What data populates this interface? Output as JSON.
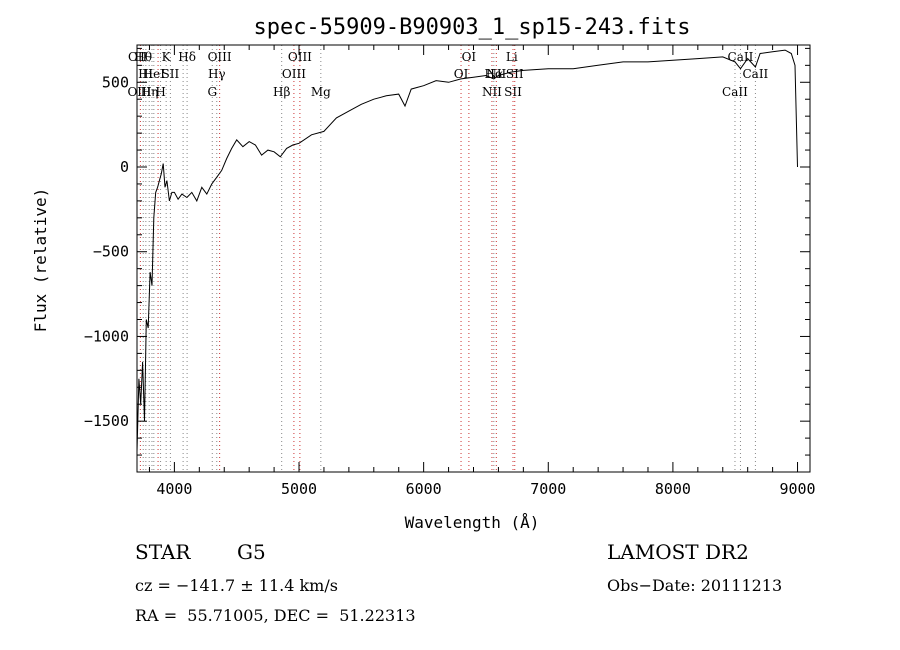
{
  "chart_data": {
    "type": "line",
    "title": "spec-55909-B90903_1_sp15-243.fits",
    "xlabel": "Wavelength (Å)",
    "ylabel": "Flux (relative)",
    "xlim": [
      3700,
      9100
    ],
    "ylim": [
      -1800,
      720
    ],
    "x_ticks": [
      4000,
      5000,
      6000,
      7000,
      8000,
      9000
    ],
    "y_ticks": [
      -1500,
      -1000,
      -500,
      0,
      500
    ],
    "grid": false,
    "series": [
      {
        "x": [
          3700,
          3715,
          3730,
          3745,
          3760,
          3775,
          3790,
          3805,
          3820,
          3835,
          3850,
          3865,
          3880,
          3895,
          3910,
          3925,
          3940,
          3960,
          3980,
          4000,
          4030,
          4060,
          4100,
          4140,
          4180,
          4220,
          4260,
          4300,
          4340,
          4380,
          4420,
          4460,
          4500,
          4550,
          4600,
          4650,
          4700,
          4750,
          4800,
          4850,
          4900,
          4950,
          5000,
          5100,
          5200,
          5300,
          5400,
          5500,
          5600,
          5700,
          5800,
          5850,
          5900,
          5950,
          6000,
          6100,
          6200,
          6300,
          6400,
          6500,
          6563,
          6600,
          6700,
          6800,
          7000,
          7200,
          7400,
          7600,
          7800,
          8000,
          8200,
          8400,
          8498,
          8542,
          8600,
          8662,
          8700,
          8800,
          8900,
          8950,
          8980,
          9000
        ],
        "y": [
          -1680,
          -1250,
          -1400,
          -1150,
          -1500,
          -900,
          -950,
          -620,
          -700,
          -300,
          -150,
          -120,
          -80,
          -40,
          20,
          -120,
          -80,
          -200,
          -150,
          -150,
          -190,
          -160,
          -180,
          -150,
          -200,
          -120,
          -160,
          -100,
          -60,
          -20,
          50,
          110,
          160,
          120,
          150,
          130,
          70,
          100,
          90,
          60,
          110,
          130,
          140,
          190,
          210,
          290,
          330,
          370,
          400,
          420,
          430,
          360,
          460,
          470,
          480,
          510,
          500,
          520,
          530,
          540,
          520,
          540,
          560,
          570,
          580,
          580,
          600,
          620,
          620,
          630,
          640,
          650,
          620,
          580,
          640,
          590,
          670,
          680,
          690,
          670,
          600,
          0
        ]
      }
    ],
    "line_labels": [
      {
        "wave": 3705,
        "text": "OII",
        "row": 1,
        "color": "#000000"
      },
      {
        "wave": 3720,
        "text": "OIII",
        "row": 3,
        "color": "#000000"
      },
      {
        "wave": 3750,
        "text": "Hθ",
        "row": 1,
        "color": "#000000"
      },
      {
        "wave": 3770,
        "text": "Hι",
        "row": 2,
        "color": "#000000"
      },
      {
        "wave": 3800,
        "text": "Hη",
        "row": 3,
        "color": "#000000"
      },
      {
        "wave": 3835,
        "text": "HeI",
        "row": 2,
        "color": "#000000"
      },
      {
        "wave": 3889,
        "text": "H",
        "row": 3,
        "color": "#000000"
      },
      {
        "wave": 3934,
        "text": "K",
        "row": 1,
        "color": "#000000"
      },
      {
        "wave": 3968,
        "text": "SII",
        "row": 2,
        "color": "#000000"
      },
      {
        "wave": 4102,
        "text": "Hδ",
        "row": 1,
        "color": "#000000"
      },
      {
        "wave": 4304,
        "text": "G",
        "row": 3,
        "color": "#000000"
      },
      {
        "wave": 4340,
        "text": "Hγ",
        "row": 2,
        "color": "#000000"
      },
      {
        "wave": 4363,
        "text": "OIII",
        "row": 1,
        "color": "#000000"
      },
      {
        "wave": 4861,
        "text": "Hβ",
        "row": 3,
        "color": "#000000"
      },
      {
        "wave": 4959,
        "text": "OIII",
        "row": 2,
        "color": "#000000"
      },
      {
        "wave": 5007,
        "text": "OIII",
        "row": 1,
        "color": "#000000"
      },
      {
        "wave": 5175,
        "text": "Mg",
        "row": 3,
        "color": "#000000"
      },
      {
        "wave": 6300,
        "text": "OI",
        "row": 2,
        "color": "#000000"
      },
      {
        "wave": 6363,
        "text": "OI",
        "row": 1,
        "color": "#000000"
      },
      {
        "wave": 6548,
        "text": "NII",
        "row": 3,
        "color": "#000000"
      },
      {
        "wave": 6563,
        "text": "Hα",
        "row": 2,
        "color": "#000000"
      },
      {
        "wave": 6583,
        "text": "NII",
        "row": 2,
        "color": "#000000"
      },
      {
        "wave": 6707,
        "text": "Li",
        "row": 1,
        "color": "#000000"
      },
      {
        "wave": 6717,
        "text": "SII",
        "row": 3,
        "color": "#000000"
      },
      {
        "wave": 6731,
        "text": "SII",
        "row": 2,
        "color": "#000000"
      },
      {
        "wave": 8498,
        "text": "CaII",
        "row": 3,
        "color": "#000000"
      },
      {
        "wave": 8542,
        "text": "CaII",
        "row": 1,
        "color": "#000000"
      },
      {
        "wave": 8662,
        "text": "CaII",
        "row": 2,
        "color": "#000000"
      }
    ],
    "marker_lines": [
      {
        "wave": 3727,
        "color": "#cc3333"
      },
      {
        "wave": 3750,
        "color": "#888888"
      },
      {
        "wave": 3771,
        "color": "#888888"
      },
      {
        "wave": 3798,
        "color": "#888888"
      },
      {
        "wave": 3820,
        "color": "#888888"
      },
      {
        "wave": 3835,
        "color": "#888888"
      },
      {
        "wave": 3869,
        "color": "#cc3333"
      },
      {
        "wave": 3889,
        "color": "#888888"
      },
      {
        "wave": 3934,
        "color": "#888888"
      },
      {
        "wave": 3968,
        "color": "#888888"
      },
      {
        "wave": 4070,
        "color": "#888888"
      },
      {
        "wave": 4102,
        "color": "#888888"
      },
      {
        "wave": 4304,
        "color": "#888888"
      },
      {
        "wave": 4340,
        "color": "#888888"
      },
      {
        "wave": 4363,
        "color": "#cc3333"
      },
      {
        "wave": 4861,
        "color": "#888888"
      },
      {
        "wave": 4959,
        "color": "#cc3333"
      },
      {
        "wave": 5007,
        "color": "#cc3333"
      },
      {
        "wave": 5175,
        "color": "#888888"
      },
      {
        "wave": 6300,
        "color": "#cc3333"
      },
      {
        "wave": 6363,
        "color": "#cc3333"
      },
      {
        "wave": 6548,
        "color": "#cc3333"
      },
      {
        "wave": 6563,
        "color": "#888888"
      },
      {
        "wave": 6583,
        "color": "#cc3333"
      },
      {
        "wave": 6717,
        "color": "#cc3333"
      },
      {
        "wave": 6731,
        "color": "#cc3333"
      },
      {
        "wave": 8498,
        "color": "#888888"
      },
      {
        "wave": 8542,
        "color": "#888888"
      },
      {
        "wave": 8662,
        "color": "#888888"
      }
    ]
  },
  "info": {
    "object_class": "STAR",
    "subclass": "G5",
    "survey": "LAMOST DR2",
    "cz": "cz = −141.7 ± 11.4 km/s",
    "obs_date": "Obs−Date: 20111213",
    "ra_dec": "RA =  55.71005, DEC =  51.22313"
  }
}
